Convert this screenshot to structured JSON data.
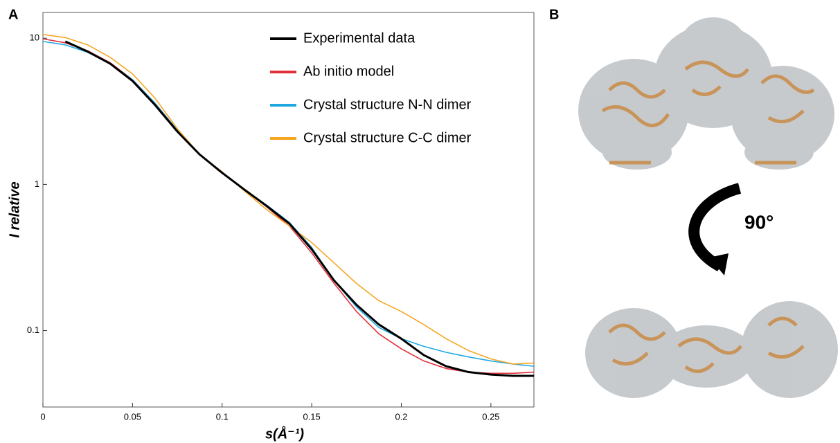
{
  "panel_labels": [
    "A",
    "B"
  ],
  "rotation_label": "90°",
  "chart_data": {
    "type": "line",
    "xlabel": "s(Å⁻¹)",
    "ylabel": "I relative",
    "x": [
      0,
      0.0125,
      0.025,
      0.0375,
      0.05,
      0.0625,
      0.075,
      0.0875,
      0.1,
      0.1125,
      0.125,
      0.1375,
      0.15,
      0.1625,
      0.175,
      0.1875,
      0.2,
      0.2125,
      0.225,
      0.2375,
      0.25,
      0.2625,
      0.274
    ],
    "series": [
      {
        "name": "Experimental data",
        "color": "#000000",
        "width": 3,
        "values": [
          null,
          9.5,
          8.1,
          6.7,
          5.1,
          3.5,
          2.3,
          1.6,
          1.2,
          0.92,
          0.71,
          0.54,
          0.36,
          0.22,
          0.15,
          0.11,
          0.088,
          0.068,
          0.057,
          0.052,
          0.05,
          0.049,
          0.049
        ]
      },
      {
        "name": "Ab initio model",
        "color": "#e0303a",
        "width": 1.6,
        "values": [
          9.9,
          9.3,
          8.2,
          6.8,
          5.2,
          3.6,
          2.35,
          1.6,
          1.2,
          0.92,
          0.7,
          0.52,
          0.34,
          0.21,
          0.135,
          0.095,
          0.075,
          0.062,
          0.055,
          0.052,
          0.051,
          0.051,
          0.052
        ]
      },
      {
        "name": "Crystal structure N-N dimer",
        "color": "#1fa8e0",
        "width": 1.6,
        "values": [
          9.5,
          9.0,
          8.0,
          6.7,
          5.2,
          3.6,
          2.35,
          1.6,
          1.2,
          0.92,
          0.72,
          0.55,
          0.37,
          0.22,
          0.145,
          0.105,
          0.088,
          0.078,
          0.071,
          0.066,
          0.062,
          0.059,
          0.057
        ]
      },
      {
        "name": "Crystal structure C-C dimer",
        "color": "#f5a623",
        "width": 1.6,
        "values": [
          10.6,
          10.1,
          9.0,
          7.4,
          5.7,
          3.9,
          2.4,
          1.6,
          1.22,
          0.9,
          0.67,
          0.52,
          0.4,
          0.29,
          0.21,
          0.16,
          0.135,
          0.11,
          0.088,
          0.073,
          0.064,
          0.059,
          0.06
        ]
      }
    ],
    "xlim": [
      0,
      0.274
    ],
    "xticks": [
      0,
      0.05,
      0.1,
      0.15,
      0.2,
      0.25
    ],
    "ylim": [
      0.03,
      15
    ],
    "yticks": [
      0.1,
      1,
      10
    ],
    "yscale": "log",
    "grid": false,
    "legend": "upper right"
  }
}
